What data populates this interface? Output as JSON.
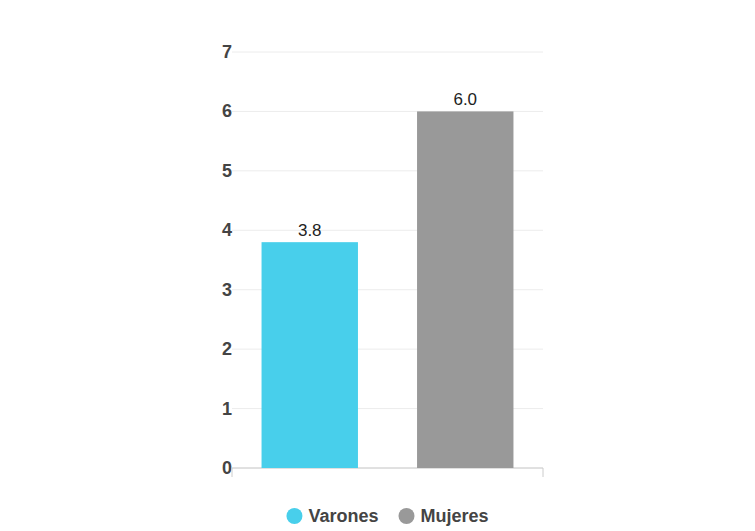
{
  "chart_data": {
    "type": "bar",
    "categories": [
      "Varones",
      "Mujeres"
    ],
    "values": [
      3.8,
      6
    ],
    "value_labels": [
      "3.8",
      "6.0"
    ],
    "colors": [
      "#48cfeb",
      "#999999"
    ],
    "ylim": [
      0,
      7
    ],
    "yticks": [
      0,
      1,
      2,
      3,
      4,
      5,
      6,
      7
    ],
    "grid": true,
    "legend": "bottom",
    "data_labels": true,
    "tick_labels": "y"
  }
}
